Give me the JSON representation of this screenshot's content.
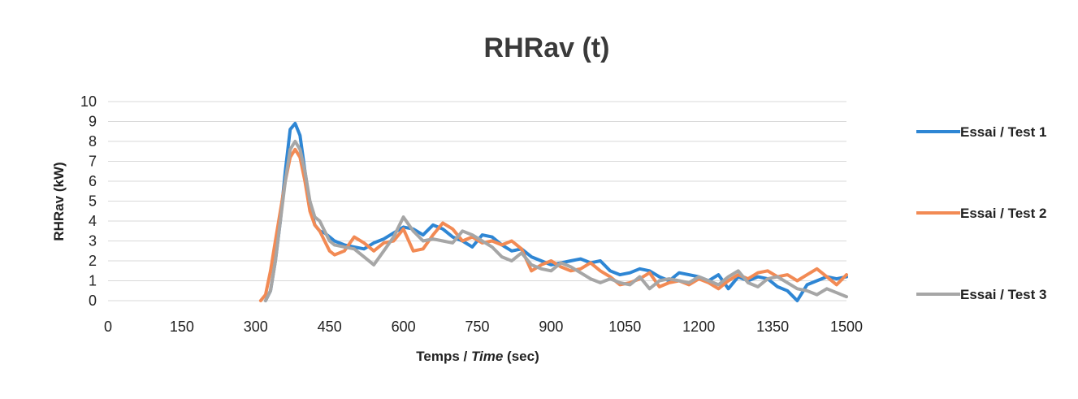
{
  "chart_data": {
    "type": "line",
    "title": "RHRav (t)",
    "xlabel": {
      "prefix": "Temps / ",
      "italic": "Time",
      "suffix": " (sec)"
    },
    "ylabel": "RHRav (kW)",
    "xlim": [
      0,
      1500
    ],
    "ylim": [
      0,
      10
    ],
    "xticks": [
      0,
      150,
      300,
      450,
      600,
      750,
      900,
      1050,
      1200,
      1350,
      1500
    ],
    "yticks": [
      0,
      1,
      2,
      3,
      4,
      5,
      6,
      7,
      8,
      9,
      10
    ],
    "grid": "horizontal",
    "legend_position": "right",
    "series": [
      {
        "name": "Essai / Test 1",
        "color": "#2e86d4",
        "x": [
          320,
          330,
          340,
          350,
          360,
          370,
          380,
          390,
          400,
          410,
          420,
          430,
          440,
          450,
          460,
          480,
          500,
          520,
          540,
          560,
          580,
          600,
          620,
          640,
          660,
          680,
          700,
          720,
          740,
          760,
          780,
          800,
          820,
          840,
          860,
          880,
          900,
          920,
          940,
          960,
          980,
          1000,
          1020,
          1040,
          1060,
          1080,
          1100,
          1120,
          1140,
          1160,
          1180,
          1200,
          1220,
          1240,
          1260,
          1280,
          1300,
          1320,
          1340,
          1360,
          1380,
          1400,
          1420,
          1440,
          1460,
          1480,
          1500
        ],
        "y": [
          0,
          0.5,
          2,
          4,
          6.5,
          8.6,
          8.9,
          8.3,
          6.5,
          4.8,
          3.8,
          3.5,
          3.4,
          3.2,
          3.0,
          2.8,
          2.7,
          2.6,
          2.9,
          3.1,
          3.4,
          3.7,
          3.6,
          3.3,
          3.8,
          3.6,
          3.2,
          3.0,
          2.7,
          3.3,
          3.2,
          2.8,
          2.5,
          2.6,
          2.2,
          2.0,
          1.8,
          1.9,
          2.0,
          2.1,
          1.9,
          2.0,
          1.5,
          1.3,
          1.4,
          1.6,
          1.5,
          1.2,
          1.0,
          1.4,
          1.3,
          1.2,
          1.0,
          1.3,
          0.6,
          1.2,
          1.0,
          1.2,
          1.1,
          0.7,
          0.5,
          0.0,
          0.8,
          1.0,
          1.2,
          1.1,
          1.2
        ]
      },
      {
        "name": "Essai / Test 2",
        "color": "#f28a54",
        "x": [
          310,
          320,
          330,
          340,
          350,
          360,
          370,
          380,
          390,
          400,
          410,
          420,
          430,
          440,
          450,
          460,
          480,
          500,
          520,
          540,
          560,
          580,
          600,
          620,
          640,
          660,
          680,
          700,
          720,
          740,
          760,
          780,
          800,
          820,
          840,
          860,
          880,
          900,
          920,
          940,
          960,
          980,
          1000,
          1020,
          1040,
          1060,
          1080,
          1100,
          1120,
          1140,
          1160,
          1180,
          1200,
          1220,
          1240,
          1260,
          1280,
          1300,
          1320,
          1340,
          1360,
          1380,
          1400,
          1420,
          1440,
          1460,
          1480,
          1500
        ],
        "y": [
          0,
          0.3,
          1.5,
          3,
          4.5,
          6,
          7.2,
          7.6,
          7.2,
          6.0,
          4.5,
          3.8,
          3.5,
          3.0,
          2.5,
          2.3,
          2.5,
          3.2,
          2.9,
          2.5,
          2.9,
          3.0,
          3.6,
          2.5,
          2.6,
          3.3,
          3.9,
          3.6,
          3.0,
          3.2,
          2.9,
          3.0,
          2.8,
          3.0,
          2.6,
          1.5,
          1.8,
          2.0,
          1.7,
          1.5,
          1.6,
          1.9,
          1.5,
          1.2,
          0.8,
          0.9,
          1.1,
          1.4,
          0.7,
          0.9,
          1.0,
          0.8,
          1.1,
          0.9,
          0.6,
          1.0,
          1.3,
          1.1,
          1.4,
          1.5,
          1.2,
          1.3,
          1.0,
          1.3,
          1.6,
          1.2,
          0.8,
          1.3
        ]
      },
      {
        "name": "Essai / Test 3",
        "color": "#a6a6a6",
        "x": [
          320,
          330,
          340,
          350,
          360,
          370,
          380,
          390,
          400,
          410,
          420,
          430,
          440,
          450,
          460,
          480,
          500,
          520,
          540,
          560,
          580,
          600,
          620,
          640,
          660,
          680,
          700,
          720,
          740,
          760,
          780,
          800,
          820,
          840,
          860,
          880,
          900,
          920,
          940,
          960,
          980,
          1000,
          1020,
          1040,
          1060,
          1080,
          1100,
          1120,
          1140,
          1160,
          1180,
          1200,
          1220,
          1240,
          1260,
          1280,
          1300,
          1320,
          1340,
          1360,
          1380,
          1400,
          1420,
          1440,
          1460,
          1480,
          1500
        ],
        "y": [
          0,
          0.5,
          2,
          4,
          6,
          7.6,
          8.0,
          7.6,
          6.5,
          5.0,
          4.2,
          4.0,
          3.5,
          3.0,
          2.8,
          2.7,
          2.6,
          2.2,
          1.8,
          2.5,
          3.2,
          4.2,
          3.5,
          3.0,
          3.1,
          3.0,
          2.9,
          3.5,
          3.3,
          3.0,
          2.7,
          2.2,
          2.0,
          2.4,
          1.8,
          1.6,
          1.5,
          1.9,
          1.7,
          1.4,
          1.1,
          0.9,
          1.1,
          0.9,
          0.8,
          1.2,
          0.6,
          1.0,
          1.1,
          1.0,
          0.9,
          1.2,
          1.0,
          0.8,
          1.2,
          1.5,
          0.9,
          0.7,
          1.1,
          1.2,
          0.9,
          0.6,
          0.5,
          0.3,
          0.6,
          0.4,
          0.2
        ]
      }
    ]
  }
}
